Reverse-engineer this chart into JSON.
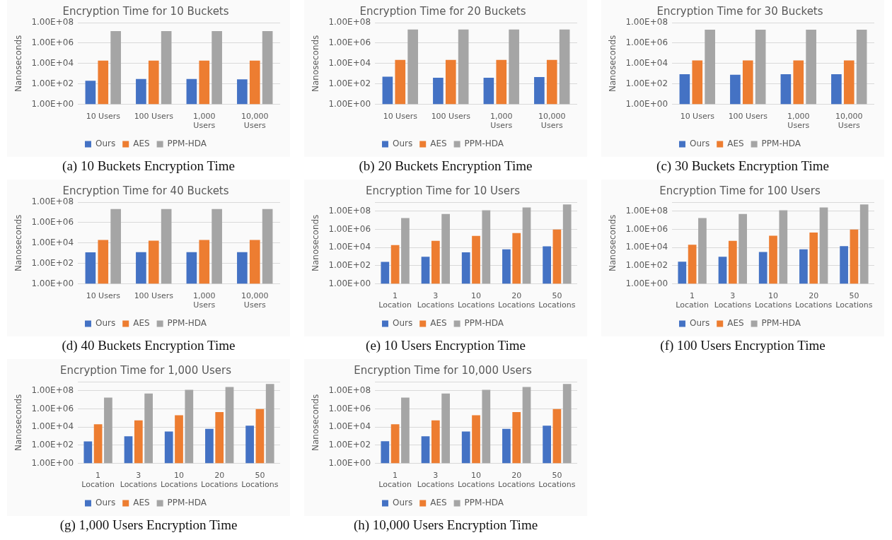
{
  "chart_data": [
    {
      "type": "bar",
      "title": "Encryption Time for 10 Buckets",
      "ylabel": "Nanoseconds",
      "categories": [
        "10 Users",
        "100 Users",
        "1,000 Users",
        "10,000 Users"
      ],
      "series": [
        {
          "name": "Ours",
          "color": "#4472c4",
          "values": [
            200,
            300,
            300,
            280
          ]
        },
        {
          "name": "AES",
          "color": "#ed7d31",
          "values": [
            19000,
            19000,
            19000,
            19000
          ]
        },
        {
          "name": "PPM-HDA",
          "color": "#a5a5a5",
          "values": [
            15000000,
            15000000,
            15000000,
            15000000
          ]
        }
      ],
      "log": "y",
      "ylim": [
        1,
        100000000
      ],
      "yticks": [
        {
          "value": 1,
          "label": "1.00E+00"
        },
        {
          "value": 100,
          "label": "1.00E+02"
        },
        {
          "value": 10000,
          "label": "1.00E+04"
        },
        {
          "value": 1000000,
          "label": "1.00E+06"
        },
        {
          "value": 100000000,
          "label": "1.00E+08"
        }
      ],
      "grid": "y",
      "legend": "bottom",
      "annotations": [
        "(a) 10 Buckets Encryption Time"
      ]
    },
    {
      "type": "bar",
      "title": "Encryption Time for 20 Buckets",
      "ylabel": "Nanoseconds",
      "categories": [
        "10 Users",
        "100 Users",
        "1,000 Users",
        "10,000 Users"
      ],
      "series": [
        {
          "name": "Ours",
          "color": "#4472c4",
          "values": [
            500,
            400,
            400,
            470
          ]
        },
        {
          "name": "AES",
          "color": "#ed7d31",
          "values": [
            22000,
            22000,
            22000,
            22000
          ]
        },
        {
          "name": "PPM-HDA",
          "color": "#a5a5a5",
          "values": [
            21000000,
            21000000,
            21000000,
            21000000
          ]
        }
      ],
      "log": "y",
      "ylim": [
        1,
        100000000
      ],
      "yticks": [
        {
          "value": 1,
          "label": "1.00E+00"
        },
        {
          "value": 100,
          "label": "1.00E+02"
        },
        {
          "value": 10000,
          "label": "1.00E+04"
        },
        {
          "value": 1000000,
          "label": "1.00E+06"
        },
        {
          "value": 100000000,
          "label": "1.00E+08"
        }
      ],
      "grid": "y",
      "legend": "bottom",
      "annotations": [
        "(b) 20 Buckets Encryption Time"
      ]
    },
    {
      "type": "bar",
      "title": "Encryption Time for 30 Buckets",
      "ylabel": "Nanoseconds",
      "categories": [
        "10 Users",
        "100 Users",
        "1,000 Users",
        "10,000 Users"
      ],
      "series": [
        {
          "name": "Ours",
          "color": "#4472c4",
          "values": [
            870,
            800,
            870,
            900
          ]
        },
        {
          "name": "AES",
          "color": "#ed7d31",
          "values": [
            20000,
            20000,
            20000,
            20000
          ]
        },
        {
          "name": "PPM-HDA",
          "color": "#a5a5a5",
          "values": [
            20000000,
            20000000,
            20000000,
            20000000
          ]
        }
      ],
      "log": "y",
      "ylim": [
        1,
        100000000
      ],
      "yticks": [
        {
          "value": 1,
          "label": "1.00E+00"
        },
        {
          "value": 100,
          "label": "1.00E+02"
        },
        {
          "value": 10000,
          "label": "1.00E+04"
        },
        {
          "value": 1000000,
          "label": "1.00E+06"
        },
        {
          "value": 100000000,
          "label": "1.00E+08"
        }
      ],
      "grid": "y",
      "legend": "bottom",
      "annotations": [
        "(c) 30 Buckets Encryption Time"
      ]
    },
    {
      "type": "bar",
      "title": "Encryption Time for 40 Buckets",
      "ylabel": "Nanoseconds",
      "categories": [
        "10 Users",
        "100 Users",
        "1,000 Users",
        "10,000 Users"
      ],
      "series": [
        {
          "name": "Ours",
          "color": "#4472c4",
          "values": [
            1200,
            1250,
            1250,
            1250
          ]
        },
        {
          "name": "AES",
          "color": "#ed7d31",
          "values": [
            20000,
            17000,
            20000,
            20000
          ]
        },
        {
          "name": "PPM-HDA",
          "color": "#a5a5a5",
          "values": [
            21000000,
            21000000,
            21000000,
            21000000
          ]
        }
      ],
      "log": "y",
      "ylim": [
        1,
        100000000
      ],
      "yticks": [
        {
          "value": 1,
          "label": "1.00E+00"
        },
        {
          "value": 100,
          "label": "1.00E+02"
        },
        {
          "value": 10000,
          "label": "1.00E+04"
        },
        {
          "value": 1000000,
          "label": "1.00E+06"
        },
        {
          "value": 100000000,
          "label": "1.00E+08"
        }
      ],
      "grid": "y",
      "legend": "bottom",
      "annotations": [
        "(d) 40 Buckets Encryption Time"
      ]
    },
    {
      "type": "bar",
      "title": "Encryption Time for 10 Users",
      "ylabel": "Nanoseconds",
      "categories": [
        "1 Location",
        "3 Locations",
        "10 Locations",
        "20 Locations",
        "50 Locations"
      ],
      "series": [
        {
          "name": "Ours",
          "color": "#4472c4",
          "values": [
            260,
            950,
            3000,
            6300,
            13500
          ]
        },
        {
          "name": "AES",
          "color": "#ed7d31",
          "values": [
            19000,
            55000,
            190000,
            400000,
            950000
          ]
        },
        {
          "name": "PPM-HDA",
          "color": "#a5a5a5",
          "values": [
            18000000,
            50000000,
            130000000,
            260000000,
            550000000
          ]
        }
      ],
      "log": "y",
      "ylim": [
        1,
        1000000000
      ],
      "yticks": [
        {
          "value": 1,
          "label": "1.00E+00"
        },
        {
          "value": 100,
          "label": "1.00E+02"
        },
        {
          "value": 10000,
          "label": "1.00E+04"
        },
        {
          "value": 1000000,
          "label": "1.00E+06"
        },
        {
          "value": 100000000,
          "label": "1.00E+08"
        },
        {
          "value": 1000000000,
          "label": null
        }
      ],
      "grid": "y",
      "legend": "bottom",
      "annotations": [
        "(e) 10 Users Encryption Time"
      ]
    },
    {
      "type": "bar",
      "title": "Encryption Time for 100 Users",
      "ylabel": "Nanoseconds",
      "categories": [
        "1 Location",
        "3 Locations",
        "10 Locations",
        "20 Locations",
        "50 Locations"
      ],
      "series": [
        {
          "name": "Ours",
          "color": "#4472c4",
          "values": [
            270,
            950,
            3200,
            6500,
            14000
          ]
        },
        {
          "name": "AES",
          "color": "#ed7d31",
          "values": [
            20000,
            55000,
            200000,
            450000,
            950000
          ]
        },
        {
          "name": "PPM-HDA",
          "color": "#a5a5a5",
          "values": [
            18000000,
            50000000,
            130000000,
            260000000,
            550000000
          ]
        }
      ],
      "log": "y",
      "ylim": [
        1,
        1000000000
      ],
      "yticks": [
        {
          "value": 1,
          "label": "1.00E+00"
        },
        {
          "value": 100,
          "label": "1.00E+02"
        },
        {
          "value": 10000,
          "label": "1.00E+04"
        },
        {
          "value": 1000000,
          "label": "1.00E+06"
        },
        {
          "value": 100000000,
          "label": "1.00E+08"
        },
        {
          "value": 1000000000,
          "label": null
        }
      ],
      "grid": "y",
      "legend": "bottom",
      "annotations": [
        "(f) 100 Users Encryption Time"
      ]
    },
    {
      "type": "bar",
      "title": "Encryption Time for 1,000 Users",
      "ylabel": "Nanoseconds",
      "categories": [
        "1 Location",
        "3 Locations",
        "10 Locations",
        "20 Locations",
        "50 Locations"
      ],
      "series": [
        {
          "name": "Ours",
          "color": "#4472c4",
          "values": [
            260,
            950,
            3200,
            6500,
            14000
          ]
        },
        {
          "name": "AES",
          "color": "#ed7d31",
          "values": [
            20000,
            55000,
            200000,
            450000,
            950000
          ]
        },
        {
          "name": "PPM-HDA",
          "color": "#a5a5a5",
          "values": [
            18000000,
            50000000,
            130000000,
            260000000,
            550000000
          ]
        }
      ],
      "log": "y",
      "ylim": [
        1,
        1000000000
      ],
      "yticks": [
        {
          "value": 1,
          "label": "1.00E+00"
        },
        {
          "value": 100,
          "label": "1.00E+02"
        },
        {
          "value": 10000,
          "label": "1.00E+04"
        },
        {
          "value": 1000000,
          "label": "1.00E+06"
        },
        {
          "value": 100000000,
          "label": "1.00E+08"
        },
        {
          "value": 1000000000,
          "label": null
        }
      ],
      "grid": "y",
      "legend": "bottom",
      "annotations": [
        "(g) 1,000 Users Encryption Time"
      ]
    },
    {
      "type": "bar",
      "title": "Encryption Time for 10,000 Users",
      "ylabel": "Nanoseconds",
      "categories": [
        "1 Location",
        "3 Locations",
        "10 Locations",
        "20 Locations",
        "50 Locations"
      ],
      "series": [
        {
          "name": "Ours",
          "color": "#4472c4",
          "values": [
            270,
            950,
            3300,
            6500,
            14000
          ]
        },
        {
          "name": "AES",
          "color": "#ed7d31",
          "values": [
            20000,
            55000,
            200000,
            450000,
            950000
          ]
        },
        {
          "name": "PPM-HDA",
          "color": "#a5a5a5",
          "values": [
            18000000,
            50000000,
            130000000,
            260000000,
            550000000
          ]
        }
      ],
      "log": "y",
      "ylim": [
        1,
        1000000000
      ],
      "yticks": [
        {
          "value": 1,
          "label": "1.00E+00"
        },
        {
          "value": 100,
          "label": "1.00E+02"
        },
        {
          "value": 10000,
          "label": "1.00E+04"
        },
        {
          "value": 1000000,
          "label": "1.00E+06"
        },
        {
          "value": 100000000,
          "label": "1.00E+08"
        },
        {
          "value": 1000000000,
          "label": null
        }
      ],
      "grid": "y",
      "legend": "bottom",
      "annotations": [
        "(h) 10,000 Users Encryption Time"
      ]
    }
  ]
}
